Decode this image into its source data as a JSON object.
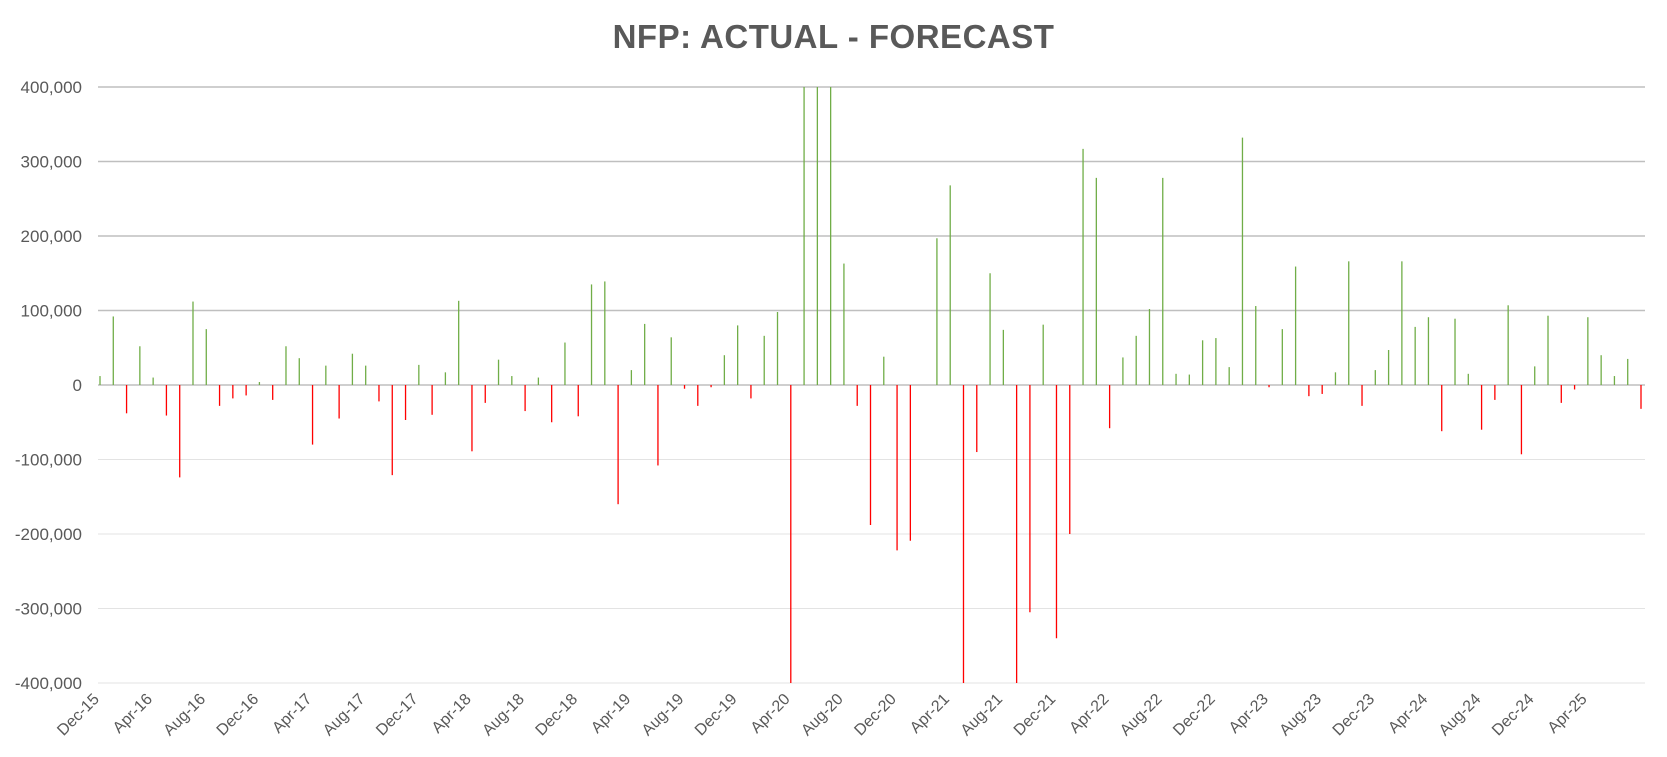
{
  "chart_data": {
    "type": "bar",
    "title": "NFP: ACTUAL - FORECAST",
    "xlabel": "",
    "ylabel": "",
    "ylim": [
      -400000,
      400000
    ],
    "grid": true,
    "legend": "none",
    "start_month": "Dec-15",
    "frequency": "monthly",
    "colors": {
      "positive": "#70ad47",
      "negative": "#ff0000",
      "grid": "#d9d9d9",
      "text": "#595959"
    },
    "y_ticks": [
      "400,000",
      "300,000",
      "200,000",
      "100,000",
      "0",
      "-100,000",
      "-200,000",
      "-300,000",
      "-400,000"
    ],
    "x_ticks": [
      {
        "index": 0,
        "label": "Dec-15"
      },
      {
        "index": 4,
        "label": "Apr-16"
      },
      {
        "index": 8,
        "label": "Aug-16"
      },
      {
        "index": 12,
        "label": "Dec-16"
      },
      {
        "index": 16,
        "label": "Apr-17"
      },
      {
        "index": 20,
        "label": "Aug-17"
      },
      {
        "index": 24,
        "label": "Dec-17"
      },
      {
        "index": 28,
        "label": "Apr-18"
      },
      {
        "index": 32,
        "label": "Aug-18"
      },
      {
        "index": 36,
        "label": "Dec-18"
      },
      {
        "index": 40,
        "label": "Apr-19"
      },
      {
        "index": 44,
        "label": "Aug-19"
      },
      {
        "index": 48,
        "label": "Dec-19"
      },
      {
        "index": 52,
        "label": "Apr-20"
      },
      {
        "index": 56,
        "label": "Aug-20"
      },
      {
        "index": 60,
        "label": "Dec-20"
      },
      {
        "index": 64,
        "label": "Apr-21"
      },
      {
        "index": 68,
        "label": "Aug-21"
      },
      {
        "index": 72,
        "label": "Dec-21"
      },
      {
        "index": 76,
        "label": "Apr-22"
      },
      {
        "index": 80,
        "label": "Aug-22"
      },
      {
        "index": 84,
        "label": "Dec-22"
      },
      {
        "index": 88,
        "label": "Apr-23"
      },
      {
        "index": 92,
        "label": "Aug-23"
      },
      {
        "index": 96,
        "label": "Dec-23"
      },
      {
        "index": 100,
        "label": "Apr-24"
      },
      {
        "index": 104,
        "label": "Aug-24"
      },
      {
        "index": 108,
        "label": "Dec-24"
      },
      {
        "index": 112,
        "label": "Apr-25"
      }
    ],
    "series": [
      {
        "name": "Actual - Forecast",
        "values": [
          12000,
          92000,
          -38000,
          52000,
          10000,
          -41000,
          -124000,
          112000,
          75000,
          -28000,
          -18000,
          -14000,
          4000,
          -20000,
          52000,
          36000,
          -80000,
          26000,
          -45000,
          42000,
          26000,
          -22000,
          -121000,
          -47000,
          27000,
          -40000,
          17000,
          113000,
          -89000,
          -24000,
          34000,
          12000,
          -35000,
          10000,
          -50000,
          57000,
          -42000,
          135000,
          139000,
          -160000,
          20000,
          82000,
          -108000,
          64000,
          -5000,
          -28000,
          -3000,
          40000,
          80000,
          -18000,
          66000,
          98000,
          -400000,
          400000,
          400000,
          400000,
          163000,
          -28000,
          -188000,
          38000,
          -222000,
          -209000,
          0,
          197000,
          268000,
          -400000,
          -90000,
          150000,
          74000,
          -400000,
          -305000,
          81000,
          -340000,
          -200000,
          317000,
          278000,
          -58000,
          37000,
          66000,
          102000,
          278000,
          15000,
          14000,
          60000,
          63000,
          24000,
          332000,
          106000,
          -3000,
          75000,
          159000,
          -15000,
          -12000,
          17000,
          166000,
          -28000,
          20000,
          47000,
          166000,
          78000,
          91000,
          -62000,
          89000,
          15000,
          -60000,
          -20000,
          107000,
          -93000,
          25000,
          93000,
          -24000,
          -6000,
          91000,
          40000,
          12000,
          35000,
          -32000
        ]
      }
    ]
  }
}
